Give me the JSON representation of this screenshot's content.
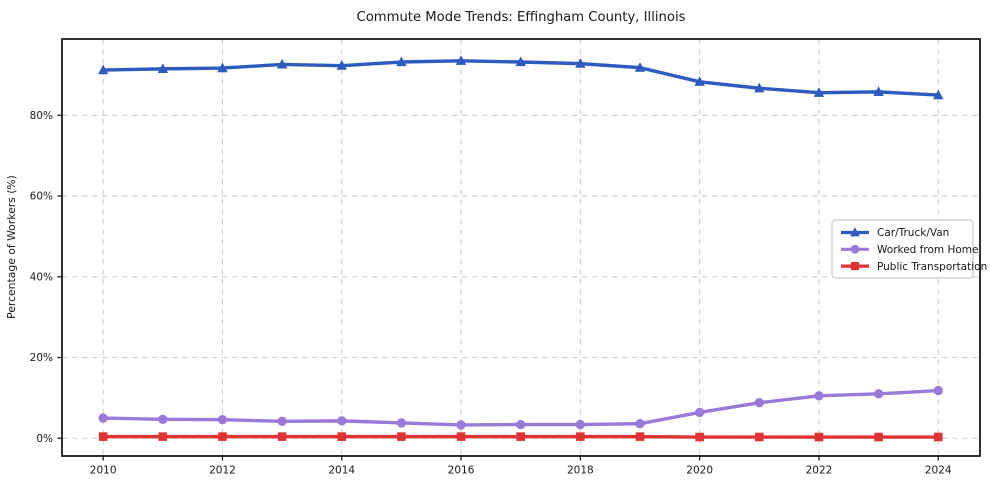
{
  "chart_data": {
    "type": "line",
    "title": "Commute Mode Trends: Effingham County, Illinois",
    "xlabel": "",
    "ylabel": "Percentage of Workers (%)",
    "x": [
      2010,
      2011,
      2012,
      2013,
      2014,
      2015,
      2016,
      2017,
      2018,
      2019,
      2020,
      2021,
      2022,
      2023,
      2024
    ],
    "series": [
      {
        "name": "Car/Truck/Van",
        "color": "#2d5bbf",
        "marker": "triangle",
        "values": [
          91.2,
          91.5,
          91.7,
          92.6,
          92.3,
          93.2,
          93.5,
          93.2,
          92.8,
          91.8,
          88.3,
          86.7,
          85.6,
          85.8,
          85.0
        ]
      },
      {
        "name": "Worked from Home",
        "color": "#9b79d8",
        "marker": "circle",
        "values": [
          5.0,
          4.7,
          4.6,
          4.2,
          4.3,
          3.8,
          3.3,
          3.4,
          3.4,
          3.6,
          6.4,
          8.8,
          10.5,
          11.0,
          11.8
        ]
      },
      {
        "name": "Public Transportation",
        "color": "#e03434",
        "marker": "square",
        "values": [
          0.4,
          0.4,
          0.4,
          0.4,
          0.4,
          0.4,
          0.4,
          0.4,
          0.4,
          0.4,
          0.3,
          0.3,
          0.3,
          0.3,
          0.3
        ]
      }
    ],
    "xlim": [
      2009.31,
      2024.7
    ],
    "ylim": [
      -4.4,
      98.9
    ],
    "x_ticks": [
      2010,
      2012,
      2014,
      2016,
      2018,
      2020,
      2022,
      2024
    ],
    "y_ticks": [
      {
        "value": 0,
        "label": "0%"
      },
      {
        "value": 20,
        "label": "20%"
      },
      {
        "value": 40,
        "label": "40%"
      },
      {
        "value": 60,
        "label": "60%"
      },
      {
        "value": 80,
        "label": "80%"
      }
    ],
    "grid": true,
    "grid_style": "dashed",
    "grid_color": "#cdcdcd",
    "spine_color": "#1a1a1a",
    "legend": {
      "position": "center-right",
      "entries": [
        "Car/Truck/Van",
        "Worked from Home",
        "Public Transportation"
      ]
    }
  }
}
